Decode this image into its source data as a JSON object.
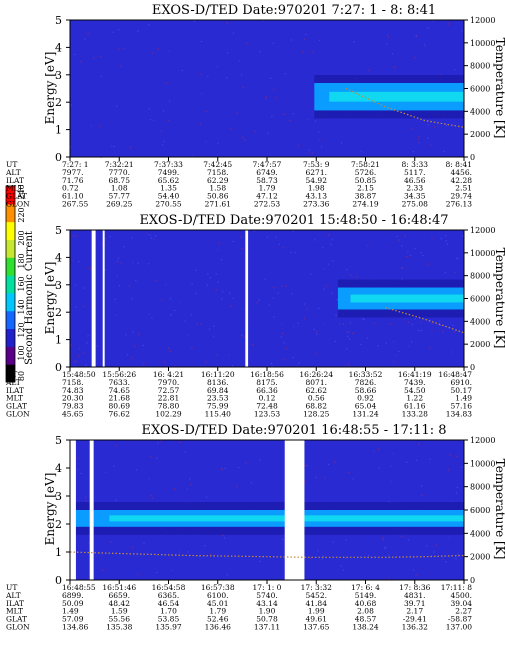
{
  "colors": {
    "background": "#2a2ad2",
    "band_bright": "#0a9cff",
    "band_core": "#10d8f0",
    "band_dark": "#1a1aa8",
    "temperature_trace": "#c28a3a",
    "data_gap": "#ffffff"
  },
  "colorbar": {
    "label": "Second Harmonic Current",
    "ticks": [
      "80",
      "100",
      "120",
      "140",
      "160",
      "180",
      "200",
      "220",
      "240"
    ],
    "colors": [
      "#000000",
      "#5a0088",
      "#2020cc",
      "#1468ff",
      "#00c8ff",
      "#00e0a0",
      "#30e030",
      "#c8e830",
      "#ffff00",
      "#ff9000",
      "#ff0000"
    ]
  },
  "chart_data": [
    {
      "type": "heatmap",
      "title": "EXOS-D/TED   Date:970201   7:27: 1 - 8: 8:41",
      "ylabel": "Energy [eV]",
      "y2label": "Temperature [K]",
      "ylim": [
        0,
        5
      ],
      "y2lim": [
        0,
        12000
      ],
      "y_ticks": [
        "0",
        "1",
        "2",
        "3",
        "4",
        "5"
      ],
      "y2_ticks": [
        "0",
        "2000",
        "4000",
        "6000",
        "8000",
        "10000",
        "12000"
      ],
      "band": {
        "start_fraction": 0.62,
        "center_ev": 2.2,
        "width_ev": 1.0
      },
      "gaps": [],
      "temperature_trace_k": [
        null,
        null,
        null,
        null,
        null,
        null,
        null,
        6000,
        4400,
        3200,
        2600
      ],
      "row_labels": [
        "UT",
        "ALT",
        "ILAT",
        "MLT",
        "GLAT",
        "GLON"
      ],
      "columns": [
        [
          "7:27: 1",
          "7977.",
          "71.76",
          "0.72",
          "61.10",
          "267.55"
        ],
        [
          "7:32:21",
          "7770.",
          "68.75",
          "1.08",
          "57.77",
          "269.25"
        ],
        [
          "7:37:33",
          "7499.",
          "65.62",
          "1.35",
          "54.40",
          "270.55"
        ],
        [
          "7:42:45",
          "7158.",
          "62.29",
          "1.58",
          "50.86",
          "271.61"
        ],
        [
          "7:47:57",
          "6749.",
          "58.73",
          "1.79",
          "47.12",
          "272.53"
        ],
        [
          "7:53: 9",
          "6271.",
          "54.92",
          "1.98",
          "43.13",
          "273.36"
        ],
        [
          "7:58:21",
          "5726.",
          "50.85",
          "2.15",
          "38.87",
          "274.19"
        ],
        [
          "8: 3:33",
          "5117.",
          "46.56",
          "2.33",
          "34.35",
          "275.08"
        ],
        [
          "8: 8:41",
          "4456.",
          "42.28",
          "2.51",
          "29.74",
          "276.13"
        ]
      ]
    },
    {
      "type": "heatmap",
      "title": "EXOS-D/TED   Date:970201   15:48:50 - 16:48:47",
      "ylabel": "Energy [eV]",
      "y2label": "Temperature [K]",
      "ylim": [
        0,
        5
      ],
      "y2lim": [
        0,
        12000
      ],
      "y_ticks": [
        "0",
        "1",
        "2",
        "3",
        "4",
        "5"
      ],
      "y2_ticks": [
        "0",
        "2000",
        "4000",
        "6000",
        "8000",
        "10000",
        "12000"
      ],
      "band": {
        "start_fraction": 0.68,
        "center_ev": 2.5,
        "width_ev": 0.8
      },
      "gaps": [
        [
          0.055,
          0.065
        ],
        [
          0.083,
          0.088
        ],
        [
          0.445,
          0.452
        ]
      ],
      "temperature_trace_k": [
        null,
        null,
        null,
        null,
        null,
        null,
        null,
        null,
        5200,
        4200,
        3000
      ],
      "row_labels": [
        "UT",
        "ALT",
        "ILAT",
        "MLT",
        "GLAT",
        "GLON"
      ],
      "columns": [
        [
          "15:48:50",
          "7158.",
          "74.83",
          "20.30",
          "79.83",
          "45.65"
        ],
        [
          "15:56:26",
          "7633.",
          "74.65",
          "21.68",
          "80.69",
          "76.62"
        ],
        [
          "16: 4:21",
          "7970.",
          "72.57",
          "22.81",
          "78.80",
          "102.29"
        ],
        [
          "16:11:20",
          "8136.",
          "69.84",
          "23.53",
          "75.99",
          "115.40"
        ],
        [
          "16:18:56",
          "8175.",
          "66.36",
          "0.12",
          "72.48",
          "123.53"
        ],
        [
          "16:26:24",
          "8071.",
          "62.62",
          "0.56",
          "68.82",
          "128.25"
        ],
        [
          "16:33:52",
          "7826.",
          "58.66",
          "0.92",
          "65.04",
          "131.24"
        ],
        [
          "16:41:19",
          "7439.",
          "54.50",
          "1.22",
          "61.16",
          "133.28"
        ],
        [
          "16:48:47",
          "6910.",
          "50.17",
          "1.49",
          "57.16",
          "134.83"
        ]
      ]
    },
    {
      "type": "heatmap",
      "title": "EXOS-D/TED   Date:970201   16:48:55 - 17:11: 8",
      "ylabel": "Energy [eV]",
      "y2label": "Temperature [K]",
      "ylim": [
        0,
        5
      ],
      "y2lim": [
        0,
        12000
      ],
      "y_ticks": [
        "0",
        "1",
        "2",
        "3",
        "4",
        "5"
      ],
      "y2_ticks": [
        "0",
        "2000",
        "4000",
        "6000",
        "8000",
        "10000",
        "12000"
      ],
      "band": {
        "start_fraction": 0.0,
        "center_ev": 2.2,
        "width_ev": 0.6
      },
      "gaps": [
        [
          0.0,
          0.015
        ],
        [
          0.05,
          0.06
        ],
        [
          0.545,
          0.595
        ]
      ],
      "temperature_trace_k": [
        2400,
        2300,
        2200,
        2100,
        2050,
        2000,
        1950,
        1950,
        1950,
        2000,
        2100
      ],
      "row_labels": [
        "UT",
        "ALT",
        "ILAT",
        "MLT",
        "GLAT",
        "GLON"
      ],
      "columns": [
        [
          "16:48:55",
          "6899.",
          "50.09",
          "1.49",
          "57.09",
          "134.86"
        ],
        [
          "16:51:46",
          "6659.",
          "48.42",
          "1.59",
          "55.56",
          "135.38"
        ],
        [
          "16:54:58",
          "6365.",
          "46.54",
          "1.70",
          "53.85",
          "135.97"
        ],
        [
          "16:57:38",
          "6100.",
          "45.01",
          "1.79",
          "52.46",
          "136.46"
        ],
        [
          "17: 1: 0",
          "5740.",
          "43.14",
          "1.90",
          "50.78",
          "137.11"
        ],
        [
          "17: 3:32",
          "5452.",
          "41.84",
          "1.99",
          "49.61",
          "137.65"
        ],
        [
          "17: 6: 4",
          "5149.",
          "40.68",
          "2.08",
          "48.57",
          "138.24"
        ],
        [
          "17: 8:36",
          "4831.",
          "39.71",
          "2.17",
          "-29.41",
          "136.32"
        ],
        [
          "17:11: 8",
          "4500.",
          "39.04",
          "2.27",
          "-58.87",
          "137.00"
        ]
      ]
    }
  ]
}
